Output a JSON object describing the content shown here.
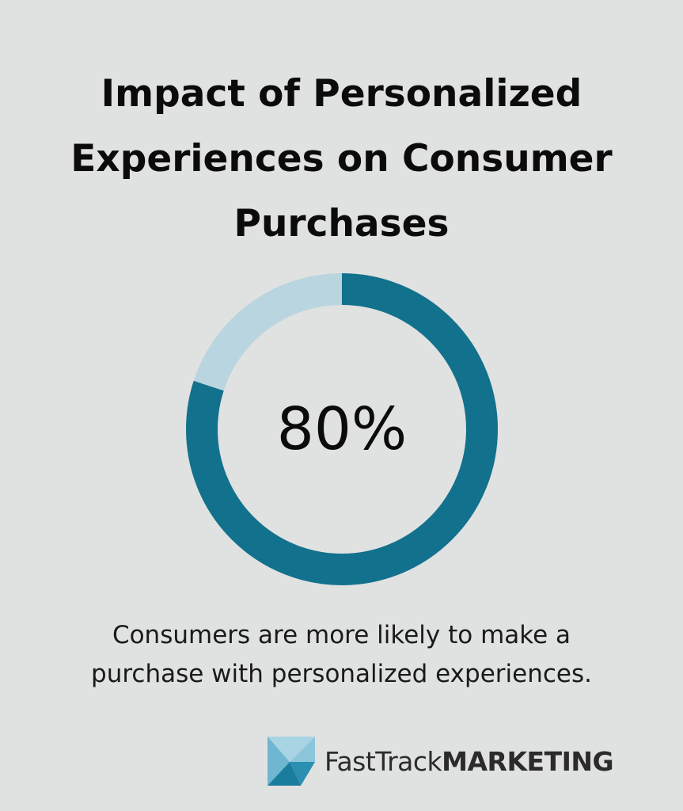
{
  "title_lines": [
    "Impact of Personalized",
    "Experiences on Consumer",
    "Purchases"
  ],
  "chart_data": {
    "type": "pie",
    "variant": "donut",
    "center_label": "80%",
    "slices": [
      {
        "value": 80,
        "color": "#12718c"
      },
      {
        "value": 20,
        "color": "#b9d5df"
      }
    ]
  },
  "caption_lines": [
    "Consumers are more likely to make a",
    "purchase with personalized experiences."
  ],
  "logo": {
    "name_regular": "FastTrack",
    "name_bold": "MARKETING",
    "icon": "triangle-logo-icon"
  },
  "colors": {
    "background": "#e0e1e1",
    "accent": "#12718c",
    "accent_light": "#b9d5df"
  }
}
